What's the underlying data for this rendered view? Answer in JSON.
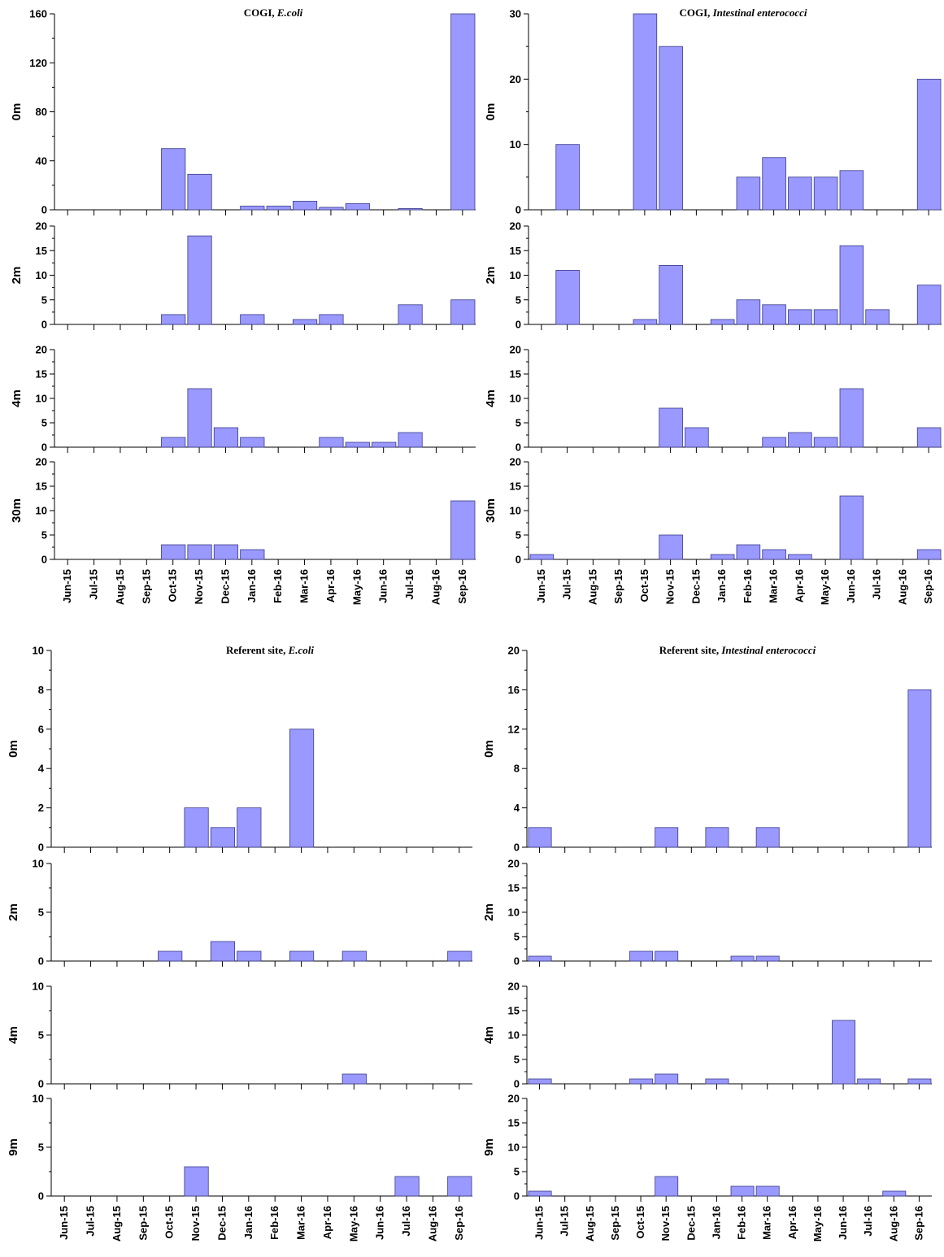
{
  "chart_data": [
    {
      "type": "bar",
      "title": "COGI, ",
      "title_italic": "E.coli",
      "categories": [
        "Jun-15",
        "Jul-15",
        "Aug-15",
        "Sep-15",
        "Oct-15",
        "Nov-15",
        "Dec-15",
        "Jan-16",
        "Feb-16",
        "Mar-16",
        "Apr-16",
        "May-16",
        "Jun-16",
        "Jul-16",
        "Aug-16",
        "Sep-16"
      ],
      "series": [
        {
          "name": "0m",
          "ylim": [
            0,
            160
          ],
          "yticks": [
            0,
            40,
            80,
            120,
            160
          ],
          "values": [
            0,
            0,
            0,
            0,
            50,
            29,
            0,
            3,
            3,
            7,
            2,
            5,
            0,
            1,
            0,
            160
          ]
        },
        {
          "name": "2m",
          "ylim": [
            0,
            20
          ],
          "yticks": [
            0,
            5,
            10,
            15,
            20
          ],
          "values": [
            0,
            0,
            0,
            0,
            2,
            18,
            0,
            2,
            0,
            1,
            2,
            0,
            0,
            4,
            0,
            5
          ]
        },
        {
          "name": "4m",
          "ylim": [
            0,
            20
          ],
          "yticks": [
            0,
            5,
            10,
            15,
            20
          ],
          "values": [
            0,
            0,
            0,
            0,
            2,
            12,
            4,
            2,
            0,
            0,
            2,
            1,
            1,
            3,
            0,
            0
          ]
        },
        {
          "name": "30m",
          "ylim": [
            0,
            20
          ],
          "yticks": [
            0,
            5,
            10,
            15,
            20
          ],
          "values": [
            0,
            0,
            0,
            0,
            3,
            3,
            3,
            2,
            0,
            0,
            0,
            0,
            0,
            0,
            0,
            12
          ]
        }
      ]
    },
    {
      "type": "bar",
      "title": "COGI, ",
      "title_italic": "Intestinal enterococci",
      "categories": [
        "Jun-15",
        "Jul-15",
        "Aug-15",
        "Sep-15",
        "Oct-15",
        "Nov-15",
        "Dec-15",
        "Jan-16",
        "Feb-16",
        "Mar-16",
        "Apr-16",
        "May-16",
        "Jun-16",
        "Jul-16",
        "Aug-16",
        "Sep-16"
      ],
      "series": [
        {
          "name": "0m",
          "ylim": [
            0,
            30
          ],
          "yticks": [
            0,
            10,
            20,
            30
          ],
          "values": [
            0,
            10,
            0,
            0,
            30,
            25,
            0,
            0,
            5,
            8,
            5,
            5,
            6,
            0,
            0,
            20
          ]
        },
        {
          "name": "2m",
          "ylim": [
            0,
            20
          ],
          "yticks": [
            0,
            5,
            10,
            15,
            20
          ],
          "values": [
            0,
            11,
            0,
            0,
            1,
            12,
            0,
            1,
            5,
            4,
            3,
            3,
            16,
            3,
            0,
            8
          ]
        },
        {
          "name": "4m",
          "ylim": [
            0,
            20
          ],
          "yticks": [
            0,
            5,
            10,
            15,
            20
          ],
          "values": [
            0,
            0,
            0,
            0,
            0,
            8,
            4,
            0,
            0,
            2,
            3,
            2,
            12,
            0,
            0,
            4
          ]
        },
        {
          "name": "30m",
          "ylim": [
            0,
            20
          ],
          "yticks": [
            0,
            5,
            10,
            15,
            20
          ],
          "values": [
            1,
            0,
            0,
            0,
            0,
            5,
            0,
            1,
            3,
            2,
            1,
            0,
            13,
            0,
            0,
            2
          ]
        }
      ]
    },
    {
      "type": "bar",
      "title": "Referent site, ",
      "title_italic": "E.coli",
      "categories": [
        "Jun-15",
        "Jul-15",
        "Aug-15",
        "Sep-15",
        "Oct-15",
        "Nov-15",
        "Dec-15",
        "Jan-16",
        "Feb-16",
        "Mar-16",
        "Apr-16",
        "May-16",
        "Jun-16",
        "Jul-16",
        "Aug-16",
        "Sep-16"
      ],
      "series": [
        {
          "name": "0m",
          "ylim": [
            0,
            10
          ],
          "yticks": [
            0,
            2,
            4,
            6,
            8,
            10
          ],
          "values": [
            0,
            0,
            0,
            0,
            0,
            2,
            1,
            2,
            0,
            6,
            0,
            0,
            0,
            0,
            0,
            0
          ]
        },
        {
          "name": "2m",
          "ylim": [
            0,
            10
          ],
          "yticks": [
            0,
            5,
            10
          ],
          "values": [
            0,
            0,
            0,
            0,
            1,
            0,
            2,
            1,
            0,
            1,
            0,
            1,
            0,
            0,
            0,
            1
          ]
        },
        {
          "name": "4m",
          "ylim": [
            0,
            10
          ],
          "yticks": [
            0,
            5,
            10
          ],
          "values": [
            0,
            0,
            0,
            0,
            0,
            0,
            0,
            0,
            0,
            0,
            0,
            1,
            0,
            0,
            0,
            0
          ]
        },
        {
          "name": "9m",
          "ylim": [
            0,
            10
          ],
          "yticks": [
            0,
            5,
            10
          ],
          "values": [
            0,
            0,
            0,
            0,
            0,
            3,
            0,
            0,
            0,
            0,
            0,
            0,
            0,
            2,
            0,
            2
          ]
        }
      ]
    },
    {
      "type": "bar",
      "title": "Referent site, ",
      "title_italic": "Intestinal enterococci",
      "categories": [
        "Jun-15",
        "Jul-15",
        "Aug-15",
        "Sep-15",
        "Oct-15",
        "Nov-15",
        "Dec-15",
        "Jan-16",
        "Feb-16",
        "Mar-16",
        "Apr-16",
        "May-16",
        "Jun-16",
        "Jul-16",
        "Aug-16",
        "Sep-16"
      ],
      "series": [
        {
          "name": "0m",
          "ylim": [
            0,
            20
          ],
          "yticks": [
            0,
            4,
            8,
            12,
            16,
            20
          ],
          "values": [
            2,
            0,
            0,
            0,
            0,
            2,
            0,
            2,
            0,
            2,
            0,
            0,
            0,
            0,
            0,
            16
          ]
        },
        {
          "name": "2m",
          "ylim": [
            0,
            20
          ],
          "yticks": [
            0,
            5,
            10,
            15,
            20
          ],
          "values": [
            1,
            0,
            0,
            0,
            2,
            2,
            0,
            0,
            1,
            1,
            0,
            0,
            0,
            0,
            0,
            0
          ]
        },
        {
          "name": "4m",
          "ylim": [
            0,
            20
          ],
          "yticks": [
            0,
            5,
            10,
            15,
            20
          ],
          "values": [
            1,
            0,
            0,
            0,
            1,
            2,
            0,
            1,
            0,
            0,
            0,
            0,
            13,
            1,
            0,
            1
          ]
        },
        {
          "name": "9m",
          "ylim": [
            0,
            20
          ],
          "yticks": [
            0,
            5,
            10,
            15,
            20
          ],
          "values": [
            1,
            0,
            0,
            0,
            0,
            4,
            0,
            0,
            2,
            2,
            0,
            0,
            0,
            0,
            1,
            0
          ]
        }
      ]
    }
  ],
  "colors": {
    "bar_fill": "#9999ff",
    "bar_stroke": "#3a3a88",
    "axis": "#000000"
  }
}
